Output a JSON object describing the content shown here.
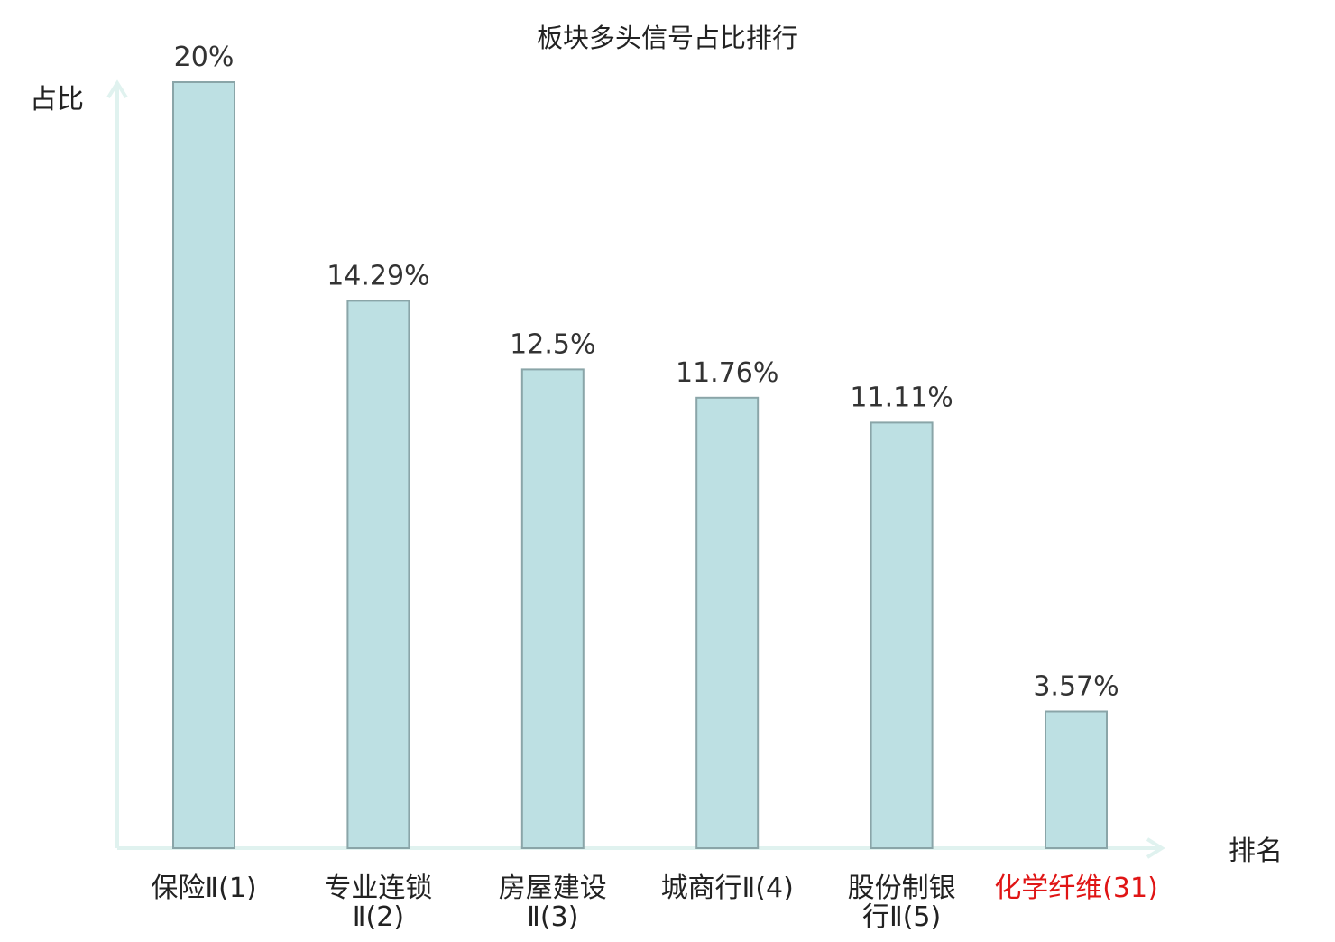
{
  "chart_data": {
    "type": "bar",
    "title": "板块多头信号占比排行",
    "xlabel": "排名",
    "ylabel": "占比",
    "ylim": [
      0,
      20
    ],
    "grid": false,
    "categories": [
      [
        "保险Ⅱ(1)"
      ],
      [
        "专业连锁",
        "Ⅱ(2)"
      ],
      [
        "房屋建设",
        "Ⅱ(3)"
      ],
      [
        "城商行Ⅱ(4)"
      ],
      [
        "股份制银",
        "行Ⅱ(5)"
      ],
      [
        "化学纤维(31)"
      ]
    ],
    "values": [
      20,
      14.29,
      12.5,
      11.76,
      11.11,
      3.57
    ],
    "value_labels": [
      "20%",
      "14.29%",
      "12.5%",
      "11.76%",
      "11.11%",
      "3.57%"
    ],
    "highlight_index": 5,
    "colors": {
      "bar_fill": "#bde0e3",
      "bar_stroke": "#8aa5a8",
      "axis": "#e0f2ef",
      "highlight_text": "#e01515",
      "text": "#222222"
    }
  }
}
